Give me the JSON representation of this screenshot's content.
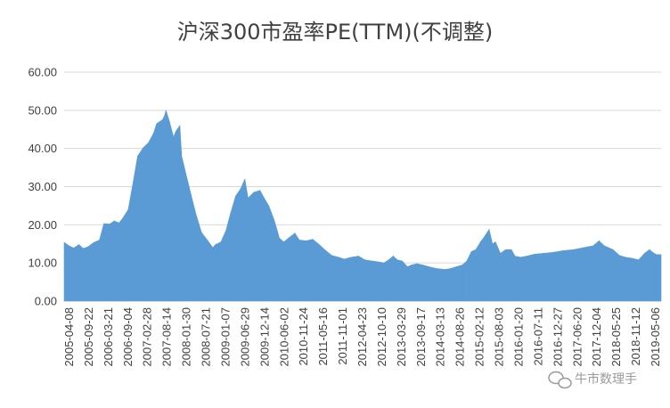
{
  "chart_data": {
    "type": "area",
    "title": "沪深300市盈率PE(TTM)(不调整)",
    "xlabel": "",
    "ylabel": "",
    "ylim": [
      0,
      60
    ],
    "yticks": [
      "0.00",
      "10.00",
      "20.00",
      "30.00",
      "40.00",
      "50.00",
      "60.00"
    ],
    "xtick_labels": [
      "2005-04-08",
      "2005-09-22",
      "2006-03-21",
      "2006-09-04",
      "2007-02-28",
      "2007-08-14",
      "2008-01-30",
      "2008-07-21",
      "2009-01-07",
      "2009-06-29",
      "2009-12-14",
      "2010-06-02",
      "2010-11-24",
      "2011-05-16",
      "2011-11-01",
      "2012-04-23",
      "2012-10-10",
      "2013-03-29",
      "2013-09-17",
      "2014-03-13",
      "2014-08-26",
      "2015-02-12",
      "2015-08-03",
      "2016-01-20",
      "2016-07-11",
      "2016-12-27",
      "2017-06-20",
      "2017-12-04",
      "2018-05-25",
      "2018-11-12",
      "2019-05-06"
    ],
    "grid": "horizontal",
    "color": "#5b9bd5",
    "series": [
      {
        "name": "",
        "points": [
          [
            "2005-04-08",
            15.4
          ],
          [
            "2005-05-20",
            14.5
          ],
          [
            "2005-07-01",
            13.9
          ],
          [
            "2005-08-15",
            14.8
          ],
          [
            "2005-09-22",
            13.8
          ],
          [
            "2005-11-01",
            14.2
          ],
          [
            "2005-12-20",
            15.3
          ],
          [
            "2006-02-10",
            16.0
          ],
          [
            "2006-03-21",
            20.3
          ],
          [
            "2006-05-10",
            20.2
          ],
          [
            "2006-06-20",
            21.0
          ],
          [
            "2006-08-01",
            20.5
          ],
          [
            "2006-09-04",
            21.8
          ],
          [
            "2006-10-20",
            24.0
          ],
          [
            "2006-12-01",
            31.0
          ],
          [
            "2007-01-10",
            38.0
          ],
          [
            "2007-02-28",
            40.2
          ],
          [
            "2007-04-15",
            41.5
          ],
          [
            "2007-05-29",
            44.0
          ],
          [
            "2007-06-25",
            46.5
          ],
          [
            "2007-08-14",
            47.5
          ],
          [
            "2007-09-01",
            48.5
          ],
          [
            "2007-09-15",
            50.0
          ],
          [
            "2007-10-16",
            47.0
          ],
          [
            "2007-11-20",
            43.0
          ],
          [
            "2007-12-10",
            44.5
          ],
          [
            "2008-01-14",
            46.0
          ],
          [
            "2008-01-30",
            38.0
          ],
          [
            "2008-03-10",
            33.0
          ],
          [
            "2008-04-20",
            28.0
          ],
          [
            "2008-06-01",
            23.0
          ],
          [
            "2008-07-21",
            18.0
          ],
          [
            "2008-09-10",
            16.0
          ],
          [
            "2008-10-28",
            14.0
          ],
          [
            "2008-11-20",
            14.8
          ],
          [
            "2009-01-07",
            15.5
          ],
          [
            "2009-02-20",
            18.5
          ],
          [
            "2009-04-01",
            23.0
          ],
          [
            "2009-05-15",
            27.5
          ],
          [
            "2009-06-29",
            29.5
          ],
          [
            "2009-08-04",
            32.0
          ],
          [
            "2009-09-01",
            27.0
          ],
          [
            "2009-10-20",
            28.5
          ],
          [
            "2009-12-14",
            29.0
          ],
          [
            "2010-01-20",
            27.0
          ],
          [
            "2010-03-01",
            25.0
          ],
          [
            "2010-04-20",
            21.0
          ],
          [
            "2010-06-02",
            16.5
          ],
          [
            "2010-07-10",
            15.5
          ],
          [
            "2010-08-20",
            16.5
          ],
          [
            "2010-10-15",
            17.8
          ],
          [
            "2010-11-24",
            16.0
          ],
          [
            "2011-01-20",
            15.8
          ],
          [
            "2011-03-20",
            16.2
          ],
          [
            "2011-05-16",
            14.8
          ],
          [
            "2011-07-01",
            13.5
          ],
          [
            "2011-09-01",
            12.0
          ],
          [
            "2011-11-01",
            11.5
          ],
          [
            "2011-12-20",
            11.0
          ],
          [
            "2012-02-20",
            11.5
          ],
          [
            "2012-04-23",
            11.8
          ],
          [
            "2012-06-20",
            10.8
          ],
          [
            "2012-08-20",
            10.5
          ],
          [
            "2012-10-10",
            10.3
          ],
          [
            "2012-12-01",
            10.0
          ],
          [
            "2013-01-20",
            11.0
          ],
          [
            "2013-02-20",
            11.8
          ],
          [
            "2013-03-29",
            10.8
          ],
          [
            "2013-05-10",
            10.5
          ],
          [
            "2013-06-25",
            9.0
          ],
          [
            "2013-08-01",
            9.5
          ],
          [
            "2013-09-17",
            9.8
          ],
          [
            "2013-11-01",
            9.5
          ],
          [
            "2014-01-01",
            9.0
          ],
          [
            "2014-03-13",
            8.5
          ],
          [
            "2014-05-20",
            8.3
          ],
          [
            "2014-07-01",
            8.5
          ],
          [
            "2014-08-26",
            9.0
          ],
          [
            "2014-10-20",
            9.5
          ],
          [
            "2014-11-25",
            10.5
          ],
          [
            "2015-01-05",
            13.0
          ],
          [
            "2015-02-12",
            13.5
          ],
          [
            "2015-03-25",
            15.5
          ],
          [
            "2015-05-01",
            17.0
          ],
          [
            "2015-06-08",
            18.8
          ],
          [
            "2015-07-08",
            15.0
          ],
          [
            "2015-08-03",
            15.5
          ],
          [
            "2015-09-15",
            12.5
          ],
          [
            "2015-11-01",
            13.5
          ],
          [
            "2015-12-20",
            13.5
          ],
          [
            "2016-01-20",
            11.8
          ],
          [
            "2016-03-10",
            11.5
          ],
          [
            "2016-05-01",
            11.8
          ],
          [
            "2016-07-11",
            12.3
          ],
          [
            "2016-09-20",
            12.5
          ],
          [
            "2016-12-27",
            12.8
          ],
          [
            "2017-03-10",
            13.2
          ],
          [
            "2017-06-20",
            13.5
          ],
          [
            "2017-09-10",
            14.0
          ],
          [
            "2017-12-04",
            14.5
          ],
          [
            "2018-01-24",
            15.8
          ],
          [
            "2018-03-10",
            14.5
          ],
          [
            "2018-05-25",
            13.5
          ],
          [
            "2018-07-20",
            12.0
          ],
          [
            "2018-09-10",
            11.5
          ],
          [
            "2018-11-12",
            11.2
          ],
          [
            "2019-01-04",
            10.8
          ],
          [
            "2019-02-25",
            12.5
          ],
          [
            "2019-04-10",
            13.5
          ],
          [
            "2019-05-06",
            12.8
          ],
          [
            "2019-06-10",
            12.2
          ],
          [
            "2019-07-20",
            12.2
          ]
        ]
      }
    ]
  },
  "watermark": {
    "text": "牛市数理手",
    "icon": "wechat-icon"
  }
}
